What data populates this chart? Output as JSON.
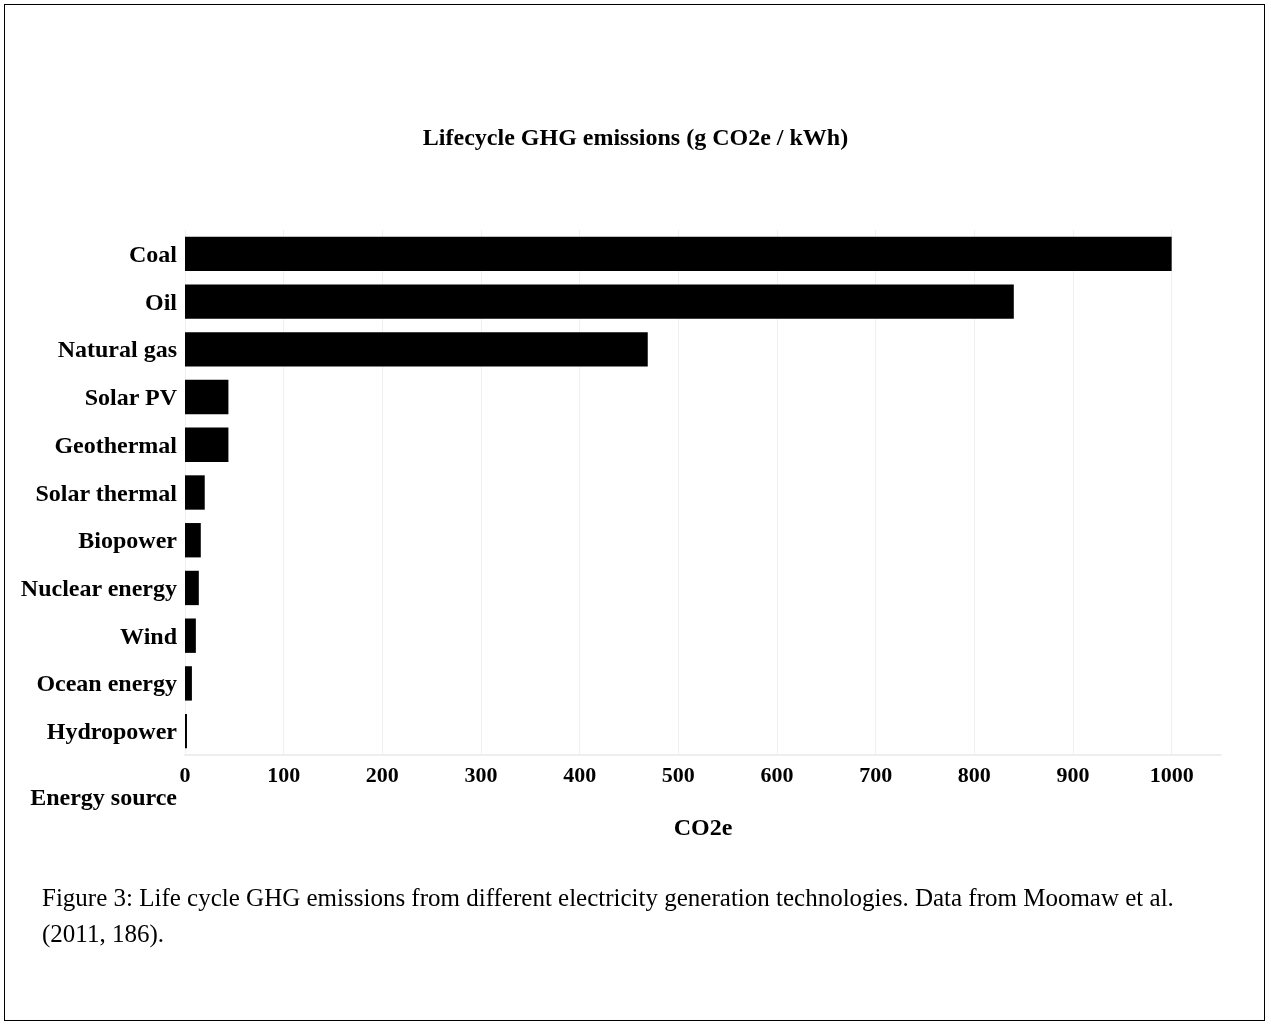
{
  "chart_data": {
    "type": "bar",
    "orientation": "horizontal",
    "title": "Lifecycle GHG emissions (g CO2e / kWh)",
    "xlabel": "CO2e",
    "ylabel": "Energy source",
    "categories": [
      "Coal",
      "Oil",
      "Natural gas",
      "Solar PV",
      "Geothermal",
      "Solar thermal",
      "Biopower",
      "Nuclear energy",
      "Wind",
      "Ocean energy",
      "Hydropower"
    ],
    "values": [
      1000,
      840,
      469,
      44,
      44,
      20,
      16,
      14,
      11,
      7,
      2
    ],
    "color": "#000000",
    "xlim": [
      0,
      1050
    ],
    "xticks": [
      0,
      100,
      200,
      300,
      400,
      500,
      600,
      700,
      800,
      900,
      1000
    ],
    "grid": "x",
    "annotations": [
      "Figure 3:  Life cycle GHG emissions from different electricity generation technologies. Data from Moomaw et al. (2011, 186)."
    ]
  }
}
